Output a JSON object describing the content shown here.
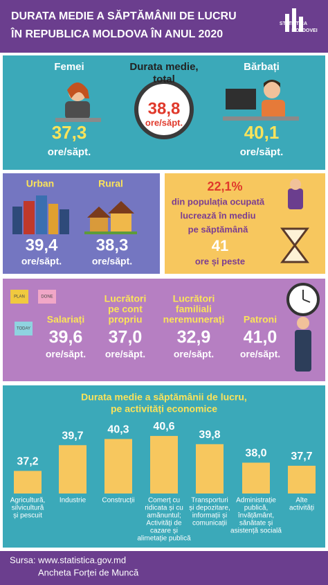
{
  "header": {
    "title_lines": [
      "DURATA MEDIE A SĂPTĂMÂNII DE LUCRU",
      "ÎN REPUBLICA MOLDOVA ÎN ANUL 2020"
    ],
    "logo": [
      "STATISTICA",
      "MOLDOVEI"
    ]
  },
  "gender": [
    {
      "label": [
        "Femei"
      ],
      "value": "37,3",
      "unit": "ore/săpt."
    },
    {
      "label": [
        "Durata medie,",
        "total"
      ],
      "value": "38,8",
      "unit": "ore/săpt."
    },
    {
      "label": [
        "Bărbați"
      ],
      "value": "40,1",
      "unit": "ore/săpt."
    }
  ],
  "area": [
    {
      "label": "Urban",
      "value": "39,4",
      "unit": "ore/săpt."
    },
    {
      "label": "Rural",
      "value": "38,3",
      "unit": "ore/săpt."
    }
  ],
  "long_hours": {
    "share": "22,1%",
    "text": [
      "din populația ocupată",
      "lucrează în mediu",
      "pe săptămână"
    ],
    "hours": "41",
    "suffix": "ore și peste"
  },
  "status": [
    {
      "label": [
        "Salariați"
      ],
      "value": "39,6",
      "unit": "ore/săpt."
    },
    {
      "label": [
        "Lucrători",
        "pe cont",
        "propriu"
      ],
      "value": "37,0",
      "unit": "ore/săpt."
    },
    {
      "label": [
        "Lucrători",
        "familiali",
        "neremunerați"
      ],
      "value": "32,9",
      "unit": "ore/săpt."
    },
    {
      "label": [
        "Patroni"
      ],
      "value": "41,0",
      "unit": "ore/săpt."
    }
  ],
  "notes": [
    "PLAN",
    "DONE",
    "TODAY"
  ],
  "chart_data": {
    "type": "bar",
    "title": [
      "Durata medie a săptămânii de lucru,",
      "pe activități economice"
    ],
    "categories": [
      [
        "Agricultură,",
        "silvicultură",
        "și pescuit"
      ],
      [
        "Industrie"
      ],
      [
        "Construcții"
      ],
      [
        "Comerț cu",
        "ridicata și cu",
        "amănuntul;",
        "Activități de",
        "cazare și",
        "alimetație publică"
      ],
      [
        "Transporturi",
        "și depozitare,",
        "informații și",
        "comunicații"
      ],
      [
        "Administrație",
        "publică,",
        "învățământ,",
        "sănătate și",
        "asistență socială"
      ],
      [
        "Alte",
        "activități"
      ]
    ],
    "values": [
      37.2,
      39.7,
      40.3,
      40.6,
      39.8,
      38.0,
      37.7
    ],
    "value_labels": [
      "37,2",
      "39,7",
      "40,3",
      "40,6",
      "39,8",
      "38,0",
      "37,7"
    ],
    "color": "#f7c75e",
    "ylim": [
      35,
      41
    ]
  },
  "footer": [
    "Sursa: www.statistica.gov.md",
    "Ancheta Forței de Muncă"
  ]
}
